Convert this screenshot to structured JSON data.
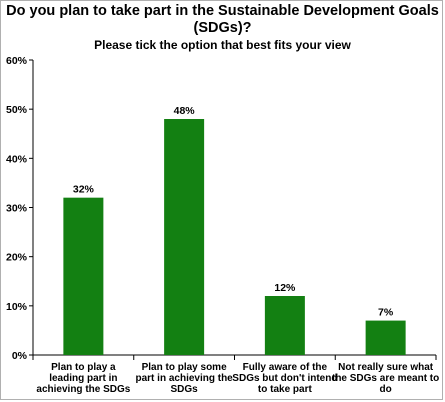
{
  "chart_data": {
    "type": "bar",
    "title": "Do you plan to take part in the Sustainable Development Goals (SDGs)?",
    "subtitle": "Please tick the option that best fits your view",
    "categories": [
      "Plan to play a leading part in achieving the SDGs",
      "Plan to play some part in achieving the SDGs",
      "Fully aware of the SDGs but don't intend to take part",
      "Not really sure what the SDGs are meant to do"
    ],
    "values": [
      32,
      48,
      12,
      7
    ],
    "data_labels": [
      "32%",
      "48%",
      "12%",
      "7%"
    ],
    "ylim": [
      0,
      60
    ],
    "yticks": [
      0,
      10,
      20,
      30,
      40,
      50,
      60
    ],
    "ytick_labels": [
      "0%",
      "10%",
      "20%",
      "30%",
      "40%",
      "50%",
      "60%"
    ],
    "xlabel": "",
    "ylabel": "",
    "grid": false,
    "bar_color": "#138012"
  }
}
